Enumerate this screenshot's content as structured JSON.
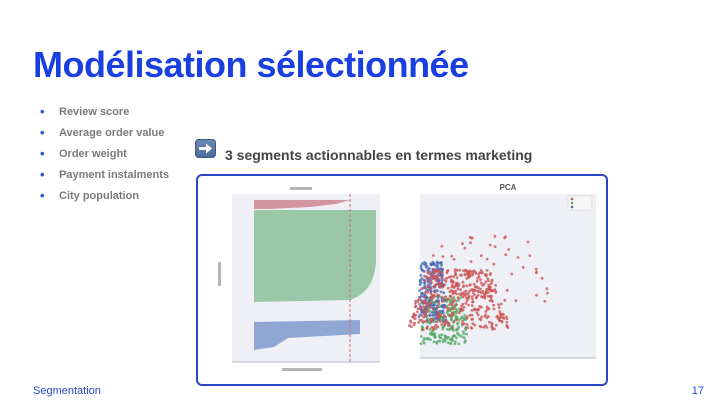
{
  "slide": {
    "title": "Modélisation sélectionnée",
    "bullets": [
      "Review score",
      "Average order value",
      "Order weight",
      "Payment instalments",
      "City population"
    ],
    "subheading": "3 segments actionnables en termes marketing",
    "footer_left": "Segmentation",
    "page_number": "17",
    "arrow_icon": "right-arrow-icon"
  },
  "figures": {
    "scatter_title": "PCA",
    "colors": {
      "red": "#cc5555",
      "green": "#55aa66",
      "blue": "#4a6ab8"
    }
  }
}
